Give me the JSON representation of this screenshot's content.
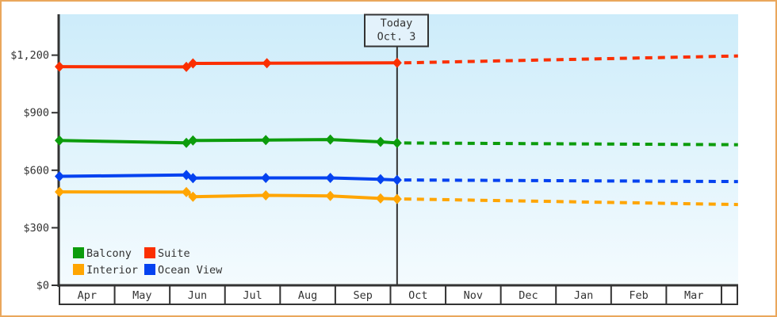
{
  "frame": {
    "border_color": "#eaa75c",
    "background_color": "#ffffff"
  },
  "chart_data": {
    "type": "line",
    "title": "",
    "x_unit": "months_from_apr",
    "x_axis": {
      "categories": [
        "Apr",
        "May",
        "Jun",
        "Jul",
        "Aug",
        "Sep",
        "Oct",
        "Nov",
        "Dec",
        "Jan",
        "Feb",
        "Mar"
      ],
      "extra_partial_cell": true
    },
    "y_axis": {
      "tick_labels": [
        "$0",
        "$300",
        "$600",
        "$900",
        "$1,200"
      ],
      "tick_values": [
        0,
        300,
        600,
        900,
        1200
      ],
      "min": 0,
      "max": 1413,
      "currency": "USD"
    },
    "today_marker": {
      "title": "Today",
      "date": "Oct. 3",
      "month_index": 6.12
    },
    "plot_bg_top": "#cdecfa",
    "plot_bg_bottom": "#f4fbfe",
    "axis_color": "#333333",
    "series": [
      {
        "name": "Balcony",
        "color": "#0c9c0c",
        "points": [
          [
            0,
            755
          ],
          [
            2.3,
            743
          ],
          [
            2.42,
            755
          ],
          [
            3.74,
            757
          ],
          [
            4.91,
            760
          ],
          [
            5.82,
            748
          ],
          [
            6.12,
            742
          ]
        ],
        "forecast": [
          [
            6.12,
            742
          ],
          [
            12.3,
            733
          ]
        ]
      },
      {
        "name": "Suite",
        "color": "#fb2f00",
        "points": [
          [
            0,
            1140
          ],
          [
            2.3,
            1139
          ],
          [
            2.42,
            1157
          ],
          [
            3.76,
            1158
          ],
          [
            6.12,
            1160
          ]
        ],
        "forecast": [
          [
            6.12,
            1160
          ],
          [
            12.3,
            1196
          ]
        ]
      },
      {
        "name": "Interior",
        "color": "#ffa502",
        "points": [
          [
            0,
            487
          ],
          [
            2.3,
            486
          ],
          [
            2.42,
            462
          ],
          [
            3.74,
            469
          ],
          [
            4.91,
            466
          ],
          [
            5.82,
            453
          ],
          [
            6.12,
            450
          ]
        ],
        "forecast": [
          [
            6.12,
            450
          ],
          [
            12.3,
            421
          ]
        ]
      },
      {
        "name": "Ocean View",
        "color": "#0442f0",
        "points": [
          [
            0,
            568
          ],
          [
            2.3,
            575
          ],
          [
            2.42,
            559
          ],
          [
            3.74,
            560
          ],
          [
            4.91,
            560
          ],
          [
            5.82,
            553
          ],
          [
            6.12,
            549
          ]
        ],
        "forecast": [
          [
            6.12,
            549
          ],
          [
            12.3,
            541
          ]
        ]
      }
    ],
    "legend": {
      "items": [
        {
          "label": "Balcony",
          "color": "#0c9c0c"
        },
        {
          "label": "Suite",
          "color": "#fb2f00"
        },
        {
          "label": "Interior",
          "color": "#ffa502"
        },
        {
          "label": "Ocean View",
          "color": "#0442f0"
        }
      ]
    }
  }
}
